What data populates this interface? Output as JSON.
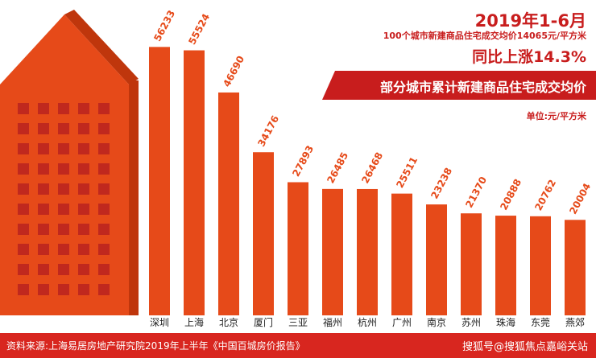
{
  "header": {
    "title": "2019年1-6月",
    "subtitle": "100个城市新建商品住宅成交均价14065元/平方米",
    "change": "同比上涨14.3%",
    "banner": "部分城市累计新建商品住宅成交均价",
    "unit": "单位:元/平方米"
  },
  "footer": {
    "source": "资料来源:上海易居房地产研究院2019年上半年《中国百城房价报告》",
    "watermark": "搜狐号@搜狐焦点嘉峪关站"
  },
  "colors": {
    "bar": "#e64a19",
    "bar_dark": "#bf360c",
    "accent_red": "#c81d1d",
    "arrow_window": "#c0281e",
    "footer_bg": "#d8261f"
  },
  "decor": {
    "building_arrow": "orange-building-arrow"
  },
  "chart_data": {
    "type": "bar",
    "title": "部分城市累计新建商品住宅成交均价",
    "ylabel": "单位:元/平方米",
    "ylim": [
      0,
      60000
    ],
    "grid": false,
    "categories": [
      "深圳",
      "上海",
      "北京",
      "厦门",
      "三亚",
      "福州",
      "杭州",
      "广州",
      "南京",
      "苏州",
      "珠海",
      "东莞",
      "燕郊"
    ],
    "values": [
      56233,
      55524,
      46690,
      34176,
      27893,
      26485,
      26468,
      25511,
      23238,
      21370,
      20888,
      20762,
      20004
    ]
  }
}
